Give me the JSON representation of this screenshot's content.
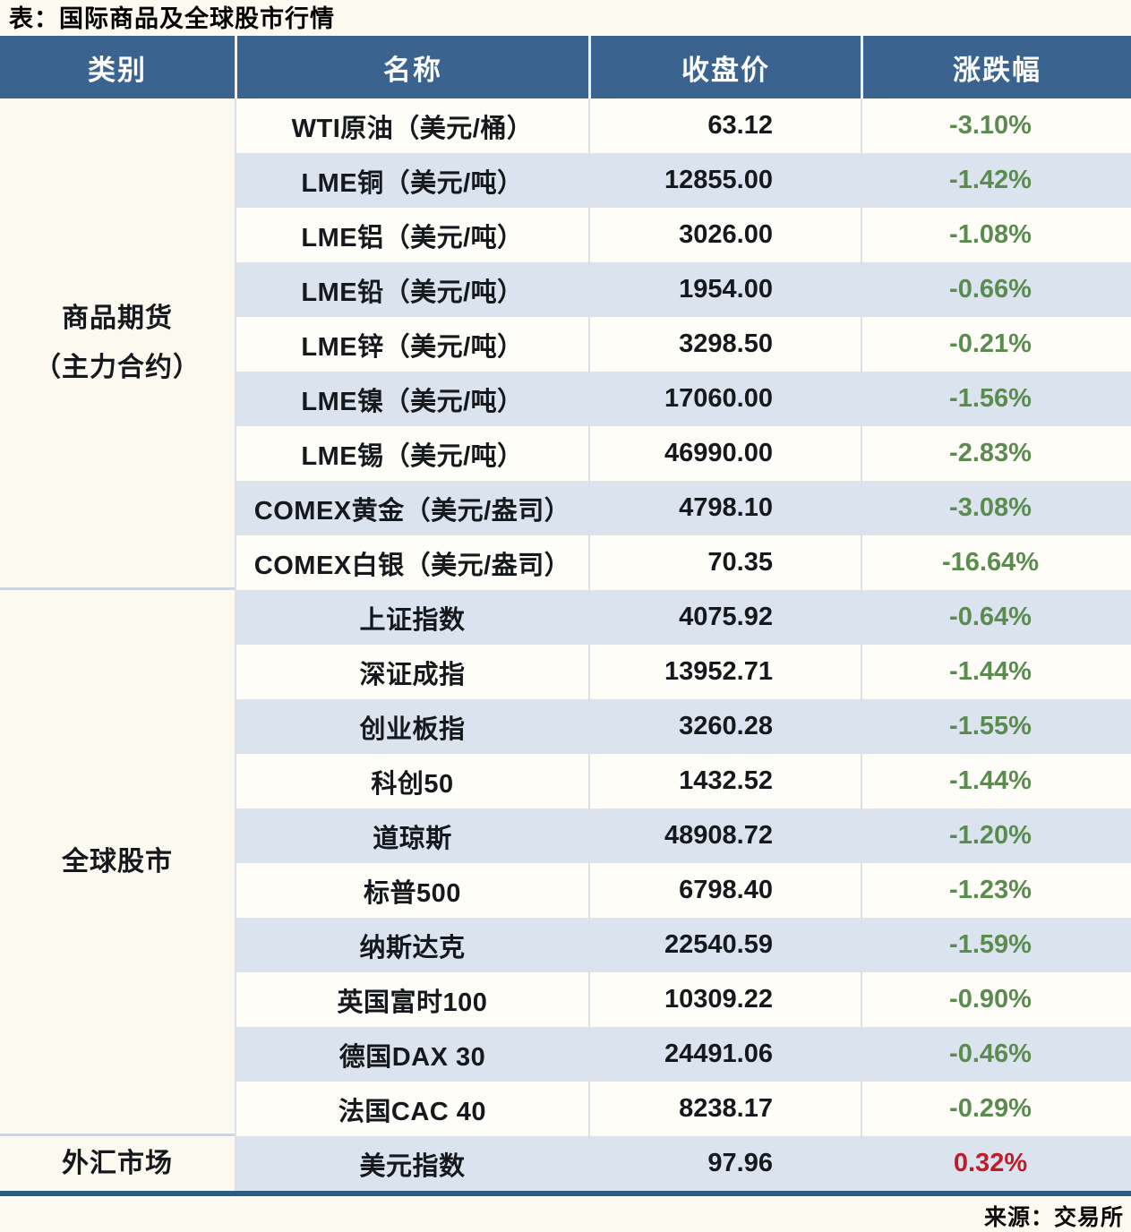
{
  "title": "表：国际商品及全球股市行情",
  "source": "来源：交易所",
  "columns": [
    "类别",
    "名称",
    "收盘价",
    "涨跌幅"
  ],
  "groups": [
    {
      "category_lines": [
        "商品期货",
        "（主力合约）"
      ],
      "rows": [
        {
          "name": "WTI原油（美元/桶）",
          "close": "63.12",
          "change": "-3.10%"
        },
        {
          "name": "LME铜（美元/吨）",
          "close": "12855.00",
          "change": "-1.42%"
        },
        {
          "name": "LME铝（美元/吨）",
          "close": "3026.00",
          "change": "-1.08%"
        },
        {
          "name": "LME铅（美元/吨）",
          "close": "1954.00",
          "change": "-0.66%"
        },
        {
          "name": "LME锌（美元/吨）",
          "close": "3298.50",
          "change": "-0.21%"
        },
        {
          "name": "LME镍（美元/吨）",
          "close": "17060.00",
          "change": "-1.56%"
        },
        {
          "name": "LME锡（美元/吨）",
          "close": "46990.00",
          "change": "-2.83%"
        },
        {
          "name": "COMEX黄金（美元/盎司）",
          "close": "4798.10",
          "change": "-3.08%"
        },
        {
          "name": "COMEX白银（美元/盎司）",
          "close": "70.35",
          "change": "-16.64%"
        }
      ]
    },
    {
      "category_lines": [
        "全球股市"
      ],
      "rows": [
        {
          "name": "上证指数",
          "close": "4075.92",
          "change": "-0.64%"
        },
        {
          "name": "深证成指",
          "close": "13952.71",
          "change": "-1.44%"
        },
        {
          "name": "创业板指",
          "close": "3260.28",
          "change": "-1.55%"
        },
        {
          "name": "科创50",
          "close": "1432.52",
          "change": "-1.44%"
        },
        {
          "name": "道琼斯",
          "close": "48908.72",
          "change": "-1.20%"
        },
        {
          "name": "标普500",
          "close": "6798.40",
          "change": "-1.23%"
        },
        {
          "name": "纳斯达克",
          "close": "22540.59",
          "change": "-1.59%"
        },
        {
          "name": "英国富时100",
          "close": "10309.22",
          "change": "-0.90%"
        },
        {
          "name": "德国DAX 30",
          "close": "24491.06",
          "change": "-0.46%"
        },
        {
          "name": "法国CAC 40",
          "close": "8238.17",
          "change": "-0.29%"
        }
      ]
    },
    {
      "category_lines": [
        "外汇市场"
      ],
      "rows": [
        {
          "name": "美元指数",
          "close": "97.96",
          "change": "0.32%"
        }
      ]
    }
  ],
  "colors": {
    "header_bg": "#3a6390",
    "row_alt_bg": "#dbe4ee",
    "row_bg": "#fefdf8",
    "page_bg": "#fbf9f0",
    "down_green": "#5a8b4f",
    "up_red": "#c01b28",
    "bottom_border": "#2b5c84"
  }
}
